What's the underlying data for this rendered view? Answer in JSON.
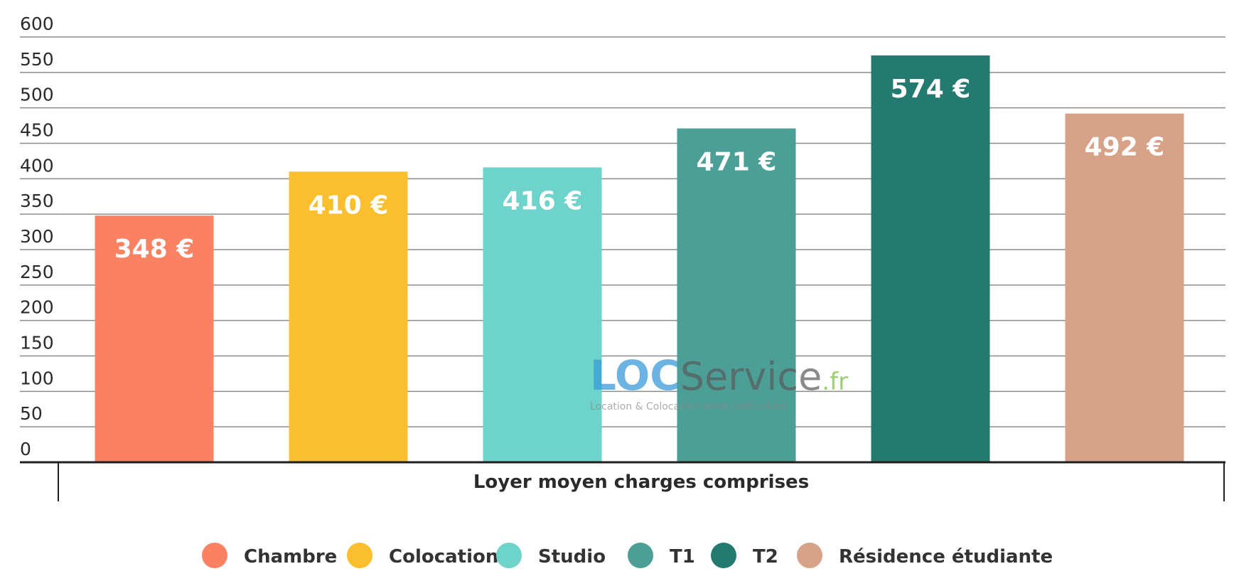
{
  "chart_data": {
    "type": "bar",
    "categories": [
      "Chambre",
      "Colocation",
      "Studio",
      "T1",
      "T2",
      "Résidence étudiante"
    ],
    "values": [
      348,
      410,
      416,
      471,
      574,
      492
    ],
    "value_labels": [
      "348 €",
      "410 €",
      "416 €",
      "471 €",
      "574 €",
      "492 €"
    ],
    "colors": [
      "#fa8262",
      "#fbbf2d",
      "#6dd3cb",
      "#4b9f96",
      "#237a70",
      "#d7a288"
    ],
    "xlabel": "Loyer moyen charges comprises",
    "ylabel": "",
    "ylim": [
      0,
      600
    ],
    "yticks": [
      "0",
      "50",
      "100",
      "150",
      "200",
      "250",
      "300",
      "350",
      "400",
      "450",
      "500",
      "550",
      "600"
    ],
    "grid": true,
    "legend_position": "bottom",
    "legend": [
      "Chambre",
      "Colocation",
      "Studio",
      "T1",
      "T2",
      "Résidence étudiante"
    ]
  },
  "watermark": {
    "brand_part1": "LOC",
    "brand_part2": "Service",
    "brand_suffix": ".fr",
    "tagline": "Location & Colocation entre particuliers"
  }
}
